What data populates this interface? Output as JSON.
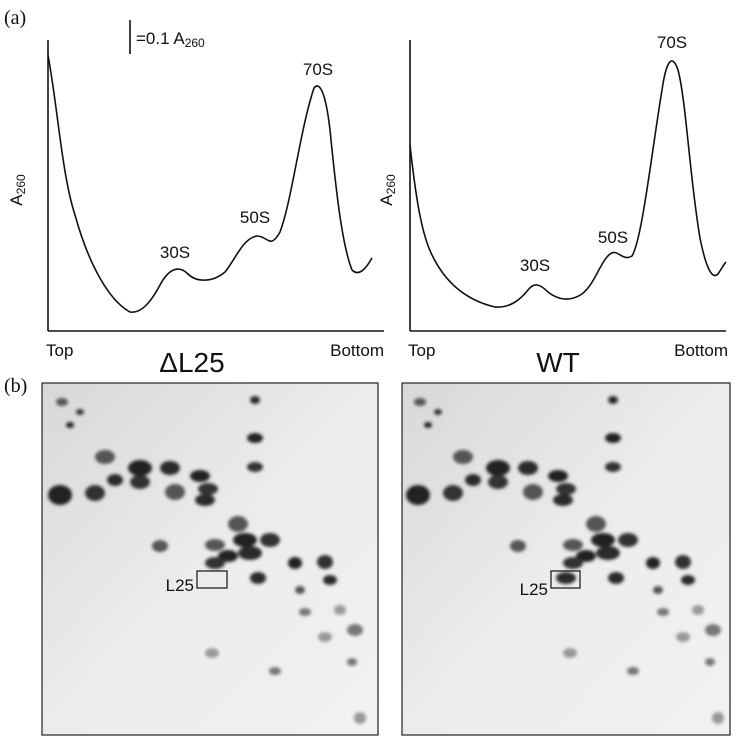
{
  "figure": {
    "panel_a": {
      "label": "(a)",
      "scale_bar": {
        "text": "=0.1 A",
        "sub": "260"
      },
      "profiles": [
        {
          "y_label": {
            "main": "A",
            "sub": "260"
          },
          "peaks": [
            "30S",
            "50S",
            "70S"
          ],
          "x_start": "Top",
          "x_end": "Bottom",
          "strain": "ΔL25"
        },
        {
          "y_label": {
            "main": "A",
            "sub": "260"
          },
          "peaks": [
            "30S",
            "50S",
            "70S"
          ],
          "x_start": "Top",
          "x_end": "Bottom",
          "strain": "WT"
        }
      ]
    },
    "panel_b": {
      "label": "(b)",
      "gels": [
        {
          "marker": "L25"
        },
        {
          "marker": "L25"
        }
      ]
    }
  }
}
